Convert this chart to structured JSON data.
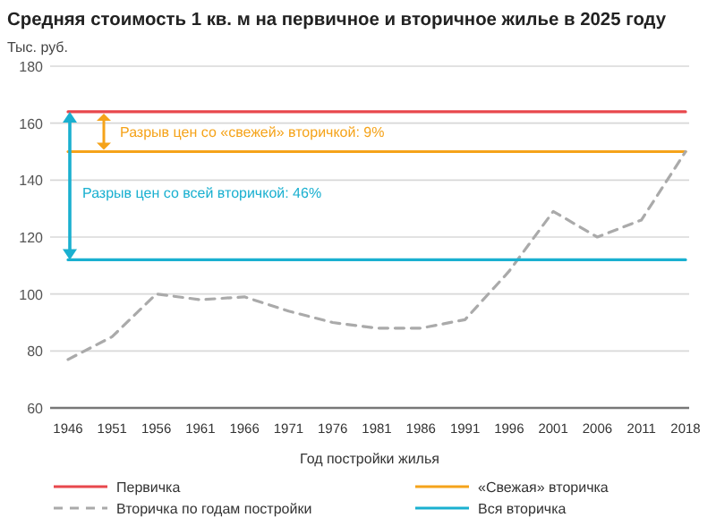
{
  "chart_data": {
    "type": "line",
    "title": "Средняя стоимость 1 кв. м на первичное и вторичное жилье в 2025 году",
    "ylabel": "Тыс. руб.",
    "xlabel": "Год постройки жилья",
    "categories": [
      "1946",
      "1951",
      "1956",
      "1961",
      "1966",
      "1971",
      "1976",
      "1981",
      "1986",
      "1991",
      "1996",
      "2001",
      "2006",
      "2011",
      "2018"
    ],
    "series": [
      {
        "name": "Первичка",
        "color": "#e8474c",
        "line_style": "solid",
        "values": [
          164,
          164,
          164,
          164,
          164,
          164,
          164,
          164,
          164,
          164,
          164,
          164,
          164,
          164,
          164
        ]
      },
      {
        "name": "«Свежая» вторичка",
        "color": "#f5a31a",
        "line_style": "solid",
        "values": [
          150,
          150,
          150,
          150,
          150,
          150,
          150,
          150,
          150,
          150,
          150,
          150,
          150,
          150,
          150
        ]
      },
      {
        "name": "Вторичка по годам постройки",
        "color": "#aaaaaa",
        "line_style": "dashed",
        "values": [
          77,
          85,
          100,
          98,
          99,
          94,
          90,
          88,
          88,
          91,
          108,
          129,
          120,
          126,
          150
        ]
      },
      {
        "name": "Вся вторичка",
        "color": "#1ab0d0",
        "line_style": "solid",
        "values": [
          112,
          112,
          112,
          112,
          112,
          112,
          112,
          112,
          112,
          112,
          112,
          112,
          112,
          112,
          112
        ]
      }
    ],
    "annotations": [
      "Разрыв цен со «свежей» вторичкой: 9%",
      "Разрыв цен со всей вторичкой: 46%"
    ],
    "ylim": [
      60,
      180
    ],
    "yticks": [
      60,
      80,
      100,
      120,
      140,
      160,
      180
    ],
    "grid": "y",
    "legend": "bottom",
    "marker": "none"
  }
}
